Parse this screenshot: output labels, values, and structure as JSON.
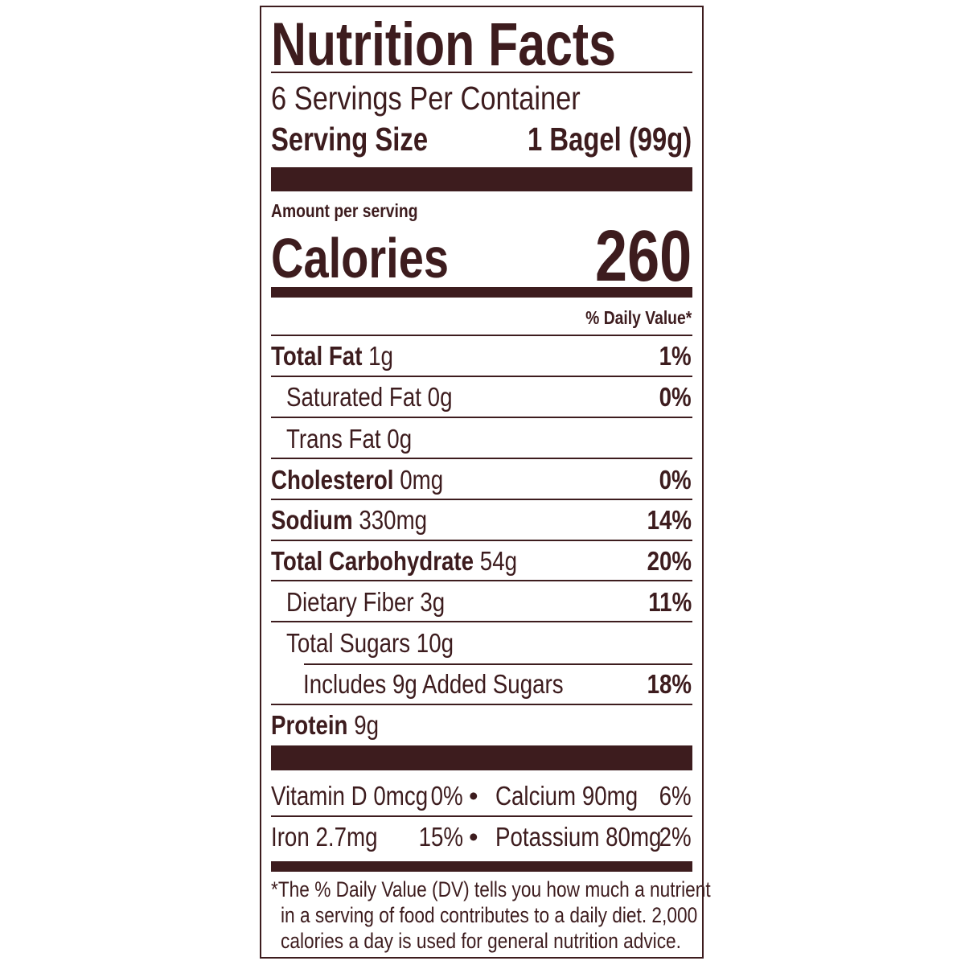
{
  "label": {
    "title": "Nutrition Facts",
    "servings_per_container": "6 Servings Per Container",
    "serving_size_label": "Serving Size",
    "serving_size_value": "1 Bagel (99g)",
    "amount_per_serving": "Amount per serving",
    "calories_label": "Calories",
    "calories_value": "260",
    "daily_value_header": "% Daily Value*",
    "nutrients": [
      {
        "name": "Total Fat",
        "amount": "1g",
        "dv": "1%"
      },
      {
        "name": "Saturated Fat",
        "amount": "0g",
        "dv": "0%"
      },
      {
        "name": "Trans Fat",
        "amount": "0g",
        "dv": ""
      },
      {
        "name": "Cholesterol",
        "amount": "0mg",
        "dv": "0%"
      },
      {
        "name": "Sodium",
        "amount": "330mg",
        "dv": "14%"
      },
      {
        "name": "Total Carbohydrate",
        "amount": "54g",
        "dv": "20%"
      },
      {
        "name": "Dietary Fiber",
        "amount": "3g",
        "dv": "11%"
      },
      {
        "name": "Total Sugars",
        "amount": "10g",
        "dv": ""
      },
      {
        "name": "Includes 9g Added Sugars",
        "amount": "",
        "dv": "18%"
      },
      {
        "name": "Protein",
        "amount": "9g",
        "dv": ""
      }
    ],
    "micros": [
      {
        "name": "Vitamin D 0mcg",
        "dv": "0%"
      },
      {
        "name": "Calcium 90mg",
        "dv": "6%"
      },
      {
        "name": "Iron 2.7mg",
        "dv": "15%"
      },
      {
        "name": "Potassium 80mg",
        "dv": "2%"
      }
    ],
    "bullet": "•",
    "footnote": [
      "*The % Daily Value (DV) tells you how much a nutrient",
      "in a serving of food contributes to a daily diet. 2,000",
      "calories a day is used for general nutrition advice."
    ],
    "color": "#3d1c1e"
  }
}
